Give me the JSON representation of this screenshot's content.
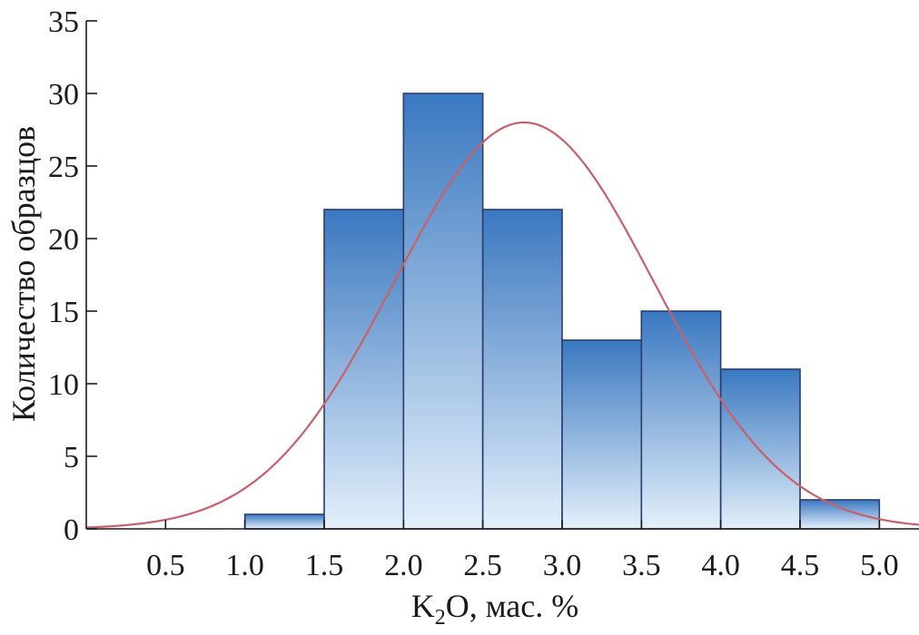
{
  "chart_data": {
    "type": "bar",
    "title": "",
    "xlabel_parts": {
      "pre": "K",
      "sub": "2",
      "post": "O, мас. %"
    },
    "ylabel": "Количество образцов",
    "xlim": [
      0.0,
      5.25
    ],
    "ylim": [
      0,
      35
    ],
    "x_ticks": [
      0.5,
      1.0,
      1.5,
      2.0,
      2.5,
      3.0,
      3.5,
      4.0,
      4.5,
      5.0
    ],
    "x_tick_labels": [
      "0.5",
      "1.0",
      "1.5",
      "2.0",
      "2.5",
      "3.0",
      "3.5",
      "4.0",
      "4.5",
      "5.0"
    ],
    "y_ticks": [
      0,
      5,
      10,
      15,
      20,
      25,
      30,
      35
    ],
    "y_tick_labels": [
      "0",
      "5",
      "10",
      "15",
      "20",
      "25",
      "30",
      "35"
    ],
    "bins": [
      {
        "x0": 1.0,
        "x1": 1.5,
        "value": 1
      },
      {
        "x0": 1.5,
        "x1": 2.0,
        "value": 22
      },
      {
        "x0": 2.0,
        "x1": 2.5,
        "value": 30
      },
      {
        "x0": 2.5,
        "x1": 3.0,
        "value": 22
      },
      {
        "x0": 3.0,
        "x1": 3.5,
        "value": 13
      },
      {
        "x0": 3.5,
        "x1": 4.0,
        "value": 15
      },
      {
        "x0": 4.0,
        "x1": 4.5,
        "value": 11
      },
      {
        "x0": 4.5,
        "x1": 5.0,
        "value": 2
      }
    ],
    "normal_curve": {
      "mean": 2.76,
      "sd": 0.82,
      "peak": 28.0
    },
    "grid": false,
    "colors": {
      "bar_top": "#3a78c0",
      "bar_bottom": "#e4f0fb",
      "bar_edge": "#2a3d6e",
      "curve": "#c8606a"
    }
  }
}
